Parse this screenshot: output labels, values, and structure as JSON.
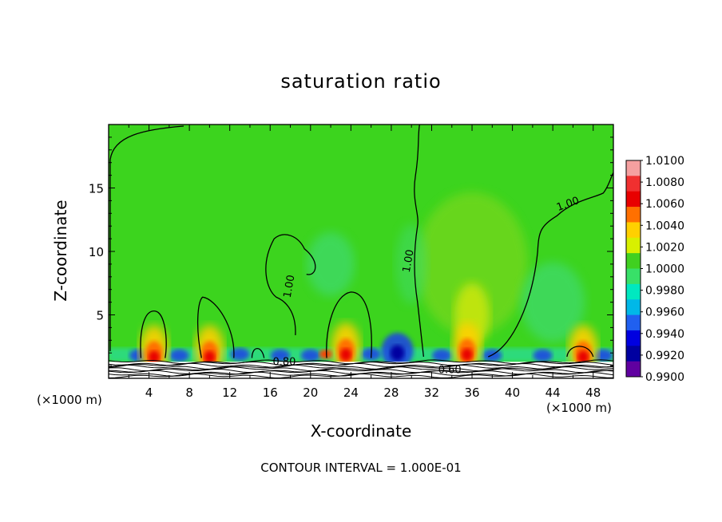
{
  "chart_data": {
    "type": "heatmap",
    "title": "saturation ratio",
    "xlabel": "X-coordinate",
    "ylabel": "Z-coordinate",
    "x_unit": "(×1000 m)",
    "y_unit": "(×1000 m)",
    "xlim": [
      0,
      50
    ],
    "ylim": [
      0,
      20
    ],
    "x_ticks": [
      4,
      8,
      12,
      16,
      20,
      24,
      28,
      32,
      36,
      40,
      44,
      48
    ],
    "y_ticks": [
      5,
      10,
      15
    ],
    "colorbar": {
      "levels": [
        "1.0100",
        "1.0080",
        "1.0060",
        "1.0040",
        "1.0020",
        "1.0000",
        "0.9980",
        "0.9960",
        "0.9940",
        "0.9920",
        "0.9900"
      ],
      "colors": [
        "#f5a0a0",
        "#f03030",
        "#e80000",
        "#ff7000",
        "#ffd000",
        "#d8f000",
        "#40d020",
        "#38e068",
        "#00e8c0",
        "#00b8e8",
        "#2060f0",
        "#0000e0",
        "#0000a0",
        "#6000a0"
      ]
    },
    "contour_labels": [
      "1.00",
      "1.00",
      "1.00",
      "0.80",
      "0.60"
    ],
    "contour_interval": "CONTOUR INTERVAL = 1.000E-01",
    "background_value": 1.0,
    "features": [
      {
        "x": 4.5,
        "z": 1.8,
        "type": "supersaturated_peak"
      },
      {
        "x": 10,
        "z": 1.8,
        "type": "supersaturated_peak"
      },
      {
        "x": 23.5,
        "z": 2.0,
        "type": "supersaturated_peak"
      },
      {
        "x": 35.5,
        "z": 2.0,
        "type": "supersaturated_peak"
      },
      {
        "x": 47,
        "z": 1.8,
        "type": "supersaturated_peak"
      },
      {
        "x": 28.5,
        "z": 2.0,
        "type": "subsaturated_trough"
      }
    ]
  }
}
